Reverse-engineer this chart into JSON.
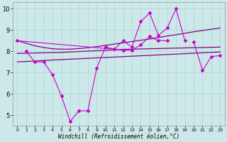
{
  "xlabel": "Windchill (Refroidissement éolien,°C)",
  "x": [
    0,
    1,
    2,
    3,
    4,
    5,
    6,
    7,
    8,
    9,
    10,
    11,
    12,
    13,
    14,
    15,
    16,
    17,
    18,
    19,
    20,
    21,
    22,
    23
  ],
  "y_upper_zig": [
    8.5,
    null,
    null,
    null,
    null,
    null,
    null,
    null,
    null,
    null,
    null,
    8.1,
    8.5,
    8.2,
    9.4,
    9.8,
    8.75,
    9.1,
    10.0,
    8.5,
    null,
    null,
    null,
    null
  ],
  "y_lower_zig": [
    null,
    8.0,
    7.5,
    7.5,
    6.9,
    5.9,
    4.7,
    5.2,
    5.2,
    7.2,
    8.2,
    8.1,
    8.05,
    8.05,
    8.3,
    8.7,
    8.5,
    8.5,
    null,
    null,
    null,
    null,
    null,
    null
  ],
  "y_right_seg": [
    null,
    null,
    null,
    null,
    null,
    null,
    null,
    null,
    null,
    null,
    null,
    null,
    null,
    null,
    null,
    null,
    null,
    null,
    null,
    null,
    8.45,
    7.1,
    7.75,
    7.8
  ],
  "y_trend_upper": [
    8.5,
    8.38,
    8.26,
    8.18,
    8.12,
    8.1,
    8.1,
    8.13,
    8.17,
    8.22,
    8.28,
    8.34,
    8.4,
    8.46,
    8.52,
    8.58,
    8.65,
    8.72,
    8.78,
    8.85,
    8.92,
    8.98,
    9.04,
    9.1
  ],
  "y_trend_lower1": [
    7.9,
    7.91,
    7.92,
    7.93,
    7.94,
    7.95,
    7.97,
    7.99,
    8.01,
    8.03,
    8.05,
    8.07,
    8.09,
    8.1,
    8.11,
    8.12,
    8.13,
    8.14,
    8.15,
    8.16,
    8.17,
    8.18,
    8.19,
    8.2
  ],
  "y_trend_lower2": [
    7.5,
    7.52,
    7.54,
    7.57,
    7.59,
    7.61,
    7.63,
    7.65,
    7.67,
    7.69,
    7.71,
    7.73,
    7.75,
    7.77,
    7.79,
    7.81,
    7.83,
    7.85,
    7.87,
    7.89,
    7.91,
    7.93,
    7.95,
    7.97
  ],
  "bg_color": "#cce8e8",
  "grid_color": "#aad4d4",
  "line_color_main": "#cc00cc",
  "line_color_dark": "#880088",
  "ylim": [
    4.5,
    10.3
  ],
  "yticks": [
    5,
    6,
    7,
    8,
    9,
    10
  ],
  "xlim": [
    -0.5,
    23.5
  ]
}
